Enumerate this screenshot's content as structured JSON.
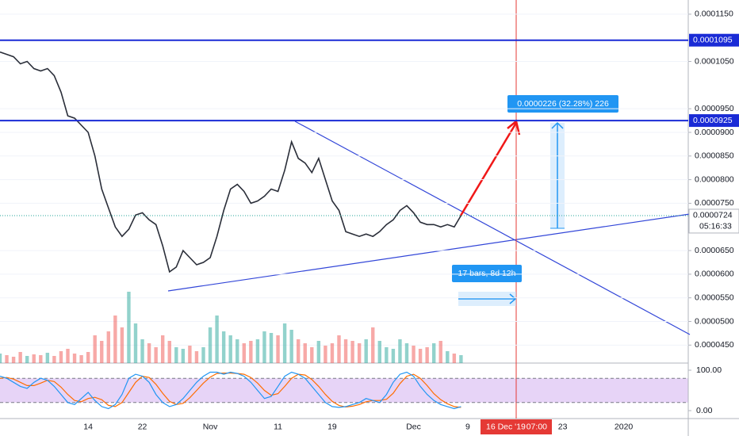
{
  "chart_data": {
    "type": "line",
    "color": "#2a2e39",
    "categories": [
      null,
      null,
      null,
      null,
      null,
      null,
      null,
      null,
      null,
      null,
      null,
      null,
      null,
      "14",
      null,
      null,
      null,
      null,
      null,
      null,
      null,
      "22",
      null,
      null,
      null,
      null,
      null,
      null,
      null,
      null,
      null,
      "Nov",
      null,
      null,
      null,
      null,
      null,
      null,
      null,
      null,
      null,
      "11",
      null,
      null,
      null,
      null,
      null,
      null,
      null,
      "19",
      null,
      null,
      null,
      null,
      null,
      null,
      null,
      null,
      null,
      null,
      null,
      "Dec",
      null,
      null,
      null,
      null,
      null,
      null,
      null,
      "9",
      null,
      null,
      null,
      null,
      null,
      null,
      null,
      null,
      null,
      null,
      null,
      null,
      null,
      "23",
      null,
      null,
      null,
      null,
      null,
      null,
      null,
      null,
      "2020"
    ],
    "values": [
      0.000107,
      0.0001065,
      0.000106,
      0.0001045,
      0.000105,
      0.0001035,
      0.000103,
      0.0001035,
      0.000102,
      9.85e-05,
      9.35e-05,
      9.3e-05,
      9.15e-05,
      9e-05,
      8.5e-05,
      7.8e-05,
      7.4e-05,
      7e-05,
      6.8e-05,
      6.95e-05,
      7.25e-05,
      7.3e-05,
      7.15e-05,
      7.05e-05,
      6.6e-05,
      6.05e-05,
      6.15e-05,
      6.5e-05,
      6.35e-05,
      6.2e-05,
      6.25e-05,
      6.35e-05,
      6.8e-05,
      7.35e-05,
      7.8e-05,
      7.9e-05,
      7.75e-05,
      7.5e-05,
      7.55e-05,
      7.65e-05,
      7.8e-05,
      7.75e-05,
      8.2e-05,
      8.8e-05,
      8.45e-05,
      8.35e-05,
      8.15e-05,
      8.45e-05,
      8e-05,
      7.55e-05,
      7.35e-05,
      6.9e-05,
      6.85e-05,
      6.8e-05,
      6.85e-05,
      6.8e-05,
      6.9e-05,
      7.05e-05,
      7.15e-05,
      7.35e-05,
      7.45e-05,
      7.3e-05,
      7.1e-05,
      7.05e-05,
      7.05e-05,
      7e-05,
      7.05e-05,
      7e-05,
      7.24e-05,
      null,
      null,
      null,
      null,
      null,
      null,
      null,
      null,
      null,
      null,
      null,
      null,
      null,
      null,
      null,
      null,
      null,
      null,
      null,
      null,
      null,
      null,
      null,
      null
    ],
    "volume": [
      12,
      10,
      8,
      14,
      9,
      11,
      10,
      13,
      9,
      15,
      18,
      12,
      10,
      14,
      35,
      28,
      40,
      60,
      45,
      90,
      50,
      30,
      25,
      20,
      35,
      28,
      20,
      18,
      22,
      15,
      20,
      45,
      60,
      40,
      35,
      30,
      25,
      28,
      30,
      40,
      38,
      35,
      50,
      42,
      30,
      25,
      20,
      28,
      22,
      25,
      35,
      30,
      28,
      25,
      30,
      45,
      28,
      20,
      18,
      30,
      25,
      22,
      18,
      20,
      25,
      28,
      15,
      12,
      10,
      null,
      null,
      null,
      null,
      null,
      null,
      null,
      null,
      null,
      null,
      null,
      null,
      null,
      null,
      null,
      null,
      null,
      null,
      null,
      null,
      null,
      null,
      null,
      null
    ],
    "ylim": [
      4.12e-05,
      0.000118
    ],
    "yticks": [
      {
        "value": 0.000115,
        "label": "0.0001150"
      },
      {
        "value": 0.000105,
        "label": "0.0001050"
      },
      {
        "value": 9.5e-05,
        "label": "0.0000950"
      },
      {
        "value": 9e-05,
        "label": "0.0000900"
      },
      {
        "value": 8.5e-05,
        "label": "0.0000850"
      },
      {
        "value": 8e-05,
        "label": "0.0000800"
      },
      {
        "value": 7.5e-05,
        "label": "0.0000750"
      },
      {
        "value": 6.5e-05,
        "label": "0.0000650"
      },
      {
        "value": 6e-05,
        "label": "0.0000600"
      },
      {
        "value": 5.5e-05,
        "label": "0.0000550"
      },
      {
        "value": 5e-05,
        "label": "0.0000500"
      },
      {
        "value": 4.5e-05,
        "label": "0.0000450"
      }
    ],
    "levels": [
      {
        "value": 0.0001095,
        "label": "0.0001095"
      },
      {
        "value": 9.25e-05,
        "label": "0.0000925"
      }
    ],
    "last_price": {
      "value": 7.24e-05,
      "label": "0.0000724"
    },
    "countdown": "05:16:33",
    "measure_label": "0.0000226 (32.28%) 226",
    "range_label": "17 bars, 8d 12h",
    "crosshair_date": "16 Dec '19",
    "crosshair_time": "07:00",
    "oscillator": {
      "ylim": [
        -19.6,
        113.7
      ],
      "yticks": [
        {
          "value": 100,
          "label": "100.00"
        },
        {
          "value": 0,
          "label": "0.00"
        }
      ],
      "bands": [
        20,
        80
      ],
      "k": [
        85,
        80,
        70,
        60,
        55,
        70,
        80,
        75,
        60,
        40,
        20,
        15,
        30,
        45,
        25,
        10,
        5,
        15,
        40,
        80,
        90,
        85,
        70,
        40,
        20,
        10,
        15,
        30,
        50,
        70,
        85,
        95,
        95,
        90,
        95,
        92,
        85,
        70,
        50,
        30,
        35,
        60,
        85,
        95,
        90,
        80,
        60,
        40,
        20,
        10,
        8,
        10,
        15,
        20,
        30,
        25,
        20,
        40,
        70,
        90,
        95,
        85,
        60,
        40,
        25,
        15,
        10,
        5,
        10,
        null,
        null,
        null,
        null,
        null,
        null,
        null,
        null,
        null,
        null,
        null,
        null,
        null,
        null,
        null,
        null,
        null,
        null,
        null,
        null,
        null,
        null,
        null,
        null
      ],
      "d": [
        80,
        82,
        78,
        70,
        62,
        62,
        68,
        75,
        72,
        58,
        40,
        25,
        22,
        30,
        33,
        27,
        13,
        10,
        20,
        45,
        70,
        85,
        82,
        65,
        43,
        23,
        15,
        18,
        32,
        50,
        68,
        83,
        92,
        93,
        93,
        92,
        90,
        82,
        68,
        50,
        38,
        42,
        60,
        80,
        90,
        88,
        77,
        60,
        40,
        23,
        13,
        9,
        11,
        15,
        22,
        25,
        25,
        28,
        43,
        67,
        85,
        90,
        80,
        62,
        42,
        27,
        17,
        10,
        8,
        null,
        null,
        null,
        null,
        null,
        null,
        null,
        null,
        null,
        null,
        null,
        null,
        null,
        null,
        null,
        null,
        null,
        null,
        null,
        null,
        null,
        null,
        null,
        null
      ],
      "k_color": "#2196f3",
      "d_color": "#ff6d00"
    }
  }
}
